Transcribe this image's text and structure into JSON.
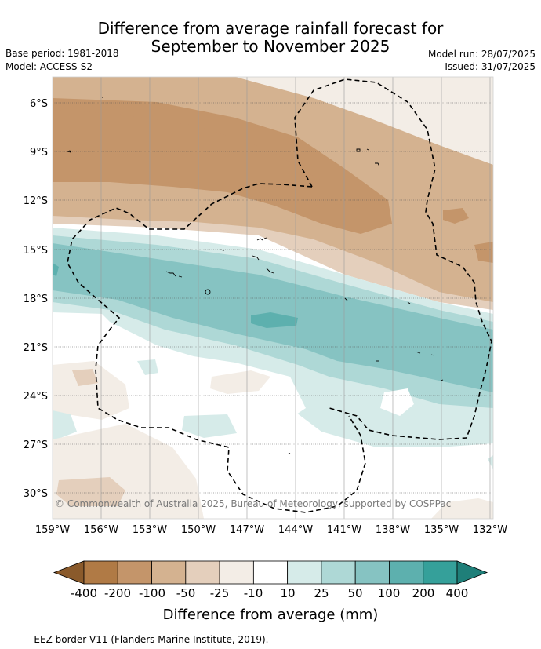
{
  "title_line1": "Difference from average rainfall forecast for",
  "title_line2": "September to November 2025",
  "base_period": "Base period: 1981-2018",
  "model": "Model: ACCESS-S2",
  "model_run": "Model run: 28/07/2025",
  "issued": "Issued: 31/07/2025",
  "credit": "© Commonwealth of Australia 2025, Bureau of Meteorology, supported by COSPPac",
  "lat_labels": [
    "6°S",
    "9°S",
    "12°S",
    "15°S",
    "18°S",
    "21°S",
    "24°S",
    "27°S",
    "30°S"
  ],
  "lon_labels": [
    "159°W",
    "156°W",
    "153°W",
    "150°W",
    "147°W",
    "144°W",
    "141°W",
    "138°W",
    "135°W",
    "132°W"
  ],
  "colorbar": {
    "labels": [
      "-400",
      "-200",
      "-100",
      "-50",
      "-25",
      "-10",
      "10",
      "25",
      "50",
      "100",
      "200",
      "400"
    ],
    "colors": [
      "#8a5a2b",
      "#b07a45",
      "#c4956a",
      "#d4b290",
      "#e4cfbc",
      "#f3ede6",
      "#ffffff",
      "#d6ebe9",
      "#aed8d6",
      "#86c3c2",
      "#5db0ae",
      "#35a09a",
      "#1f7f79"
    ],
    "title": "Difference from average (mm)"
  },
  "footnote": "--  --  -- EEZ border V11 (Flanders Marine Institute, 2019)."
}
